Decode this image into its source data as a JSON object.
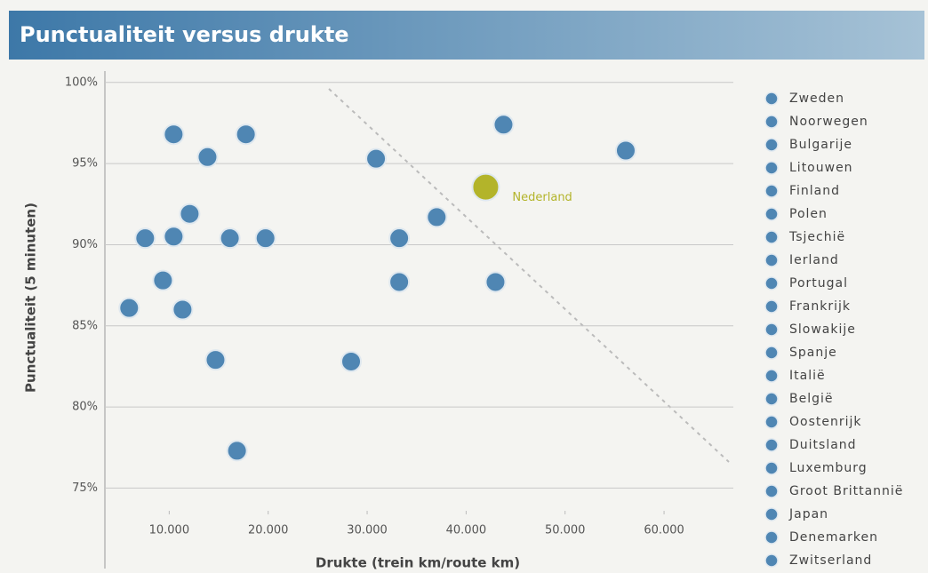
{
  "chart_data": {
    "type": "scatter",
    "title": "Punctualiteit versus drukte",
    "x_label": "Drukte (trein km/route km)",
    "y_label": "Punctualiteit (5 minuten)",
    "xlim": [
      3500,
      67000
    ],
    "ylim": [
      73.6,
      100.7
    ],
    "xticks": [
      {
        "value": 10000,
        "label": "10.000"
      },
      {
        "value": 20000,
        "label": "20.000"
      },
      {
        "value": 30000,
        "label": "30.000"
      },
      {
        "value": 40000,
        "label": "40.000"
      },
      {
        "value": 50000,
        "label": "50.000"
      },
      {
        "value": 60000,
        "label": "60.000"
      }
    ],
    "yticks": [
      {
        "value": 75,
        "label": "75%"
      },
      {
        "value": 80,
        "label": "80%"
      },
      {
        "value": 85,
        "label": "85%"
      },
      {
        "value": 90,
        "label": "90%"
      },
      {
        "value": 95,
        "label": "95%"
      },
      {
        "value": 100,
        "label": "100%"
      }
    ],
    "grid": true,
    "series": [
      {
        "name": "Zweden",
        "color": "#4f86b3",
        "x": [
          10450
        ],
        "y": [
          96.8
        ]
      },
      {
        "name": "Noorwegen",
        "color": "#4f86b3",
        "x": [
          17750
        ],
        "y": [
          96.8
        ]
      },
      {
        "name": "Bulgarije",
        "color": "#4f86b3",
        "x": [
          5950
        ],
        "y": [
          86.1
        ]
      },
      {
        "name": "Litouwen",
        "color": "#4f86b3",
        "x": [
          14680
        ],
        "y": [
          82.9
        ]
      },
      {
        "name": "Finland",
        "color": "#4f86b3",
        "x": [
          7570
        ],
        "y": [
          90.4
        ]
      },
      {
        "name": "Polen",
        "color": "#4f86b3",
        "x": [
          16850
        ],
        "y": [
          77.3
        ]
      },
      {
        "name": "Tsjechië",
        "color": "#4f86b3",
        "x": [
          13870
        ],
        "y": [
          95.4
        ]
      },
      {
        "name": "Ierland",
        "color": "#4f86b3",
        "x": [
          9370
        ],
        "y": [
          87.8
        ]
      },
      {
        "name": "Portugal",
        "color": "#4f86b3",
        "x": [
          11350
        ],
        "y": [
          86.0
        ]
      },
      {
        "name": "Frankrijk",
        "color": "#4f86b3",
        "x": [
          33240
        ],
        "y": [
          90.4
        ]
      },
      {
        "name": "Slowakije",
        "color": "#4f86b3",
        "x": [
          10450
        ],
        "y": [
          90.5
        ]
      },
      {
        "name": "Spanje",
        "color": "#4f86b3",
        "x": [
          16130
        ],
        "y": [
          90.4
        ]
      },
      {
        "name": "Italië",
        "color": "#4f86b3",
        "x": [
          19730
        ],
        "y": [
          90.4
        ]
      },
      {
        "name": "België",
        "color": "#4f86b3",
        "x": [
          37030
        ],
        "y": [
          91.7
        ]
      },
      {
        "name": "Oostenrijk",
        "color": "#4f86b3",
        "x": [
          30900
        ],
        "y": [
          95.3
        ]
      },
      {
        "name": "Duitsland",
        "color": "#4f86b3",
        "x": [
          42970
        ],
        "y": [
          87.7
        ]
      },
      {
        "name": "Luxemburg",
        "color": "#4f86b3",
        "x": [
          12070
        ],
        "y": [
          91.9
        ]
      },
      {
        "name": "Groot Brittannië",
        "color": "#4f86b3",
        "x": [
          33240
        ],
        "y": [
          87.7
        ]
      },
      {
        "name": "Japan",
        "color": "#4f86b3",
        "x": [
          56130
        ],
        "y": [
          95.8
        ]
      },
      {
        "name": "Denemarken",
        "color": "#4f86b3",
        "x": [
          28380
        ],
        "y": [
          82.8
        ]
      },
      {
        "name": "Zwitserland",
        "color": "#4f86b3",
        "x": [
          43780
        ],
        "y": [
          97.4
        ]
      },
      {
        "name": "Nederland",
        "color": "#b3b42a",
        "x": [
          41980
        ],
        "y": [
          93.55
        ],
        "highlight": true
      }
    ]
  }
}
